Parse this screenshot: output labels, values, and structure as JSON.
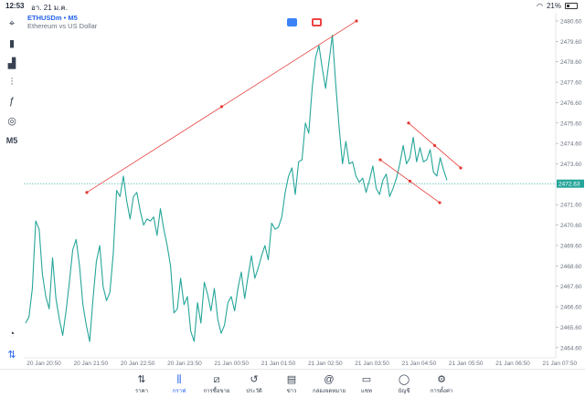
{
  "status": {
    "time": "12:53",
    "date": "อา. 21 ม.ค.",
    "battery": "21%"
  },
  "title": {
    "symbol": "ETHUSDm",
    "separator": "•",
    "timeframe": "M5",
    "description": "Ethereum vs US Dollar"
  },
  "toolbar": {
    "items": [
      {
        "name": "crosshair-icon",
        "glyph": "⌖"
      },
      {
        "name": "candle-type-icon",
        "glyph": "▮"
      },
      {
        "name": "indicators-icon",
        "glyph": "▟"
      },
      {
        "name": "sliders-icon",
        "glyph": "⫶"
      },
      {
        "name": "function-icon",
        "glyph": "ƒ"
      },
      {
        "name": "objects-icon",
        "glyph": "◎"
      },
      {
        "name": "timeframe-m5",
        "glyph": "M5"
      }
    ],
    "bottom": [
      {
        "name": "speed-icon",
        "glyph": "◔"
      },
      {
        "name": "switch-icon",
        "glyph": "⇅"
      }
    ]
  },
  "price_tag": {
    "value": "2472.63",
    "color": "#26a69a"
  },
  "chart_data": {
    "type": "line",
    "x_ticks": [
      "20 Jan 20:50",
      "20 Jan 21:50",
      "20 Jan 22:50",
      "20 Jan 23:50",
      "21 Jan 00:50",
      "21 Jan 01:50",
      "21 Jan 02:50",
      "21 Jan 03:50",
      "21 Jan 04:50",
      "21 Jan 05:50",
      "21 Jan 06:50",
      "21 Jan 07:50"
    ],
    "y_ticks": [
      "2480.60",
      "2479.60",
      "2478.60",
      "2477.60",
      "2476.60",
      "2475.60",
      "2474.60",
      "2473.60",
      "2472.60",
      "2471.60",
      "2470.60",
      "2469.60",
      "2468.60",
      "2467.60",
      "2466.60",
      "2465.60",
      "2464.60"
    ],
    "ylim": [
      2464.1,
      2481.0
    ],
    "line_color": "#26a69a",
    "values": [
      2465.8,
      2466.1,
      2467.5,
      2470.8,
      2470.4,
      2468.2,
      2467.1,
      2466.5,
      2469.0,
      2467.0,
      2466.0,
      2465.2,
      2466.4,
      2467.8,
      2469.4,
      2469.9,
      2468.6,
      2466.7,
      2465.7,
      2464.9,
      2467.0,
      2468.8,
      2469.6,
      2467.6,
      2466.9,
      2467.3,
      2469.2,
      2472.3,
      2472.0,
      2473.0,
      2471.8,
      2470.9,
      2472.0,
      2472.2,
      2471.3,
      2470.6,
      2470.9,
      2470.8,
      2471.0,
      2470.1,
      2471.4,
      2470.4,
      2469.6,
      2468.6,
      2466.3,
      2466.5,
      2468.0,
      2466.7,
      2467.1,
      2465.4,
      2464.9,
      2466.8,
      2465.8,
      2467.8,
      2467.2,
      2466.4,
      2467.5,
      2466.0,
      2465.3,
      2465.7,
      2466.8,
      2467.1,
      2466.4,
      2467.5,
      2468.3,
      2467.0,
      2468.1,
      2469.1,
      2468.0,
      2468.5,
      2469.1,
      2469.6,
      2468.9,
      2470.7,
      2470.4,
      2470.5,
      2471.0,
      2472.2,
      2473.0,
      2473.4,
      2472.1,
      2473.7,
      2473.8,
      2475.6,
      2475.1,
      2477.3,
      2478.8,
      2479.4,
      2478.3,
      2477.3,
      2478.6,
      2479.9,
      2477.5,
      2475.4,
      2473.6,
      2474.7,
      2473.6,
      2473.7,
      2473.0,
      2472.7,
      2472.9,
      2472.2,
      2472.8,
      2473.5,
      2472.4,
      2472.1,
      2472.8,
      2473.1,
      2472.0,
      2472.4,
      2472.9,
      2473.6,
      2474.5,
      2473.6,
      2473.9,
      2474.9,
      2473.7,
      2474.4,
      2473.7,
      2473.8,
      2474.3,
      2473.2,
      2473.0,
      2473.9,
      2473.3,
      2472.8
    ],
    "trendlines": [
      {
        "from": [
          2472.2,
          0.26
        ],
        "to": [
          2480.6,
          1.0
        ],
        "color": "#e53935"
      },
      {
        "from": [
          2473.8,
          0.73
        ],
        "to": [
          2471.7,
          0.82
        ],
        "color": "#e53935"
      },
      {
        "from": [
          2475.6,
          0.75
        ],
        "to": [
          2473.4,
          0.83
        ],
        "color": "#e53935"
      }
    ],
    "horizontal_line": {
      "value": 2472.63,
      "color": "#26a69a"
    }
  },
  "nav": [
    {
      "name": "nav-quotes",
      "icon": "⇅",
      "label": "ราคา",
      "active": false
    },
    {
      "name": "nav-chart",
      "icon": "⫼",
      "label": "กราฟ",
      "active": true
    },
    {
      "name": "nav-trade",
      "icon": "⧄",
      "label": "การซื้อขาย",
      "active": false
    },
    {
      "name": "nav-history",
      "icon": "↺",
      "label": "ประวัติ",
      "active": false
    },
    {
      "name": "nav-news",
      "icon": "▤",
      "label": "ข่าว",
      "active": false
    },
    {
      "name": "nav-mailbox",
      "icon": "@",
      "label": "กล่องจดหมาย",
      "active": false
    },
    {
      "name": "nav-chat",
      "icon": "▭",
      "label": "แชท",
      "active": false
    },
    {
      "name": "nav-accounts",
      "icon": "◯",
      "label": "บัญชี",
      "active": false
    },
    {
      "name": "nav-settings",
      "icon": "⚙",
      "label": "การตั้งค่า",
      "active": false
    }
  ]
}
